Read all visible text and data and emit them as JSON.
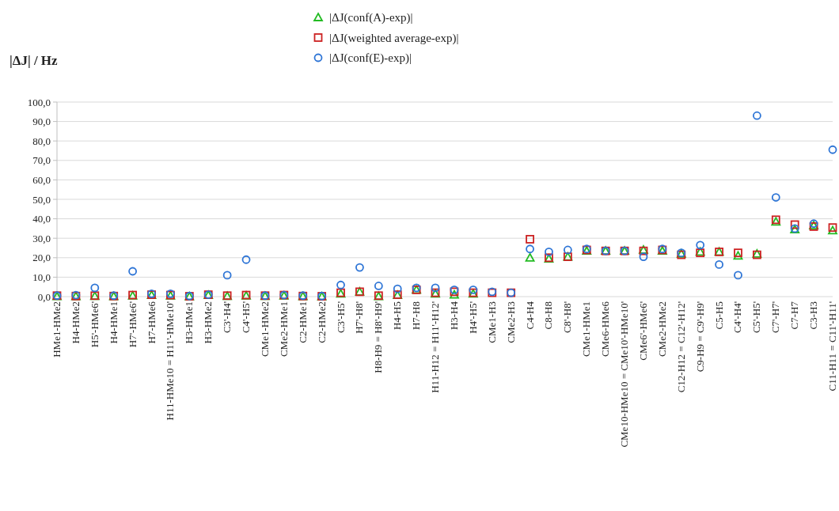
{
  "chart_data": {
    "type": "scatter",
    "ylabel": "|ΔJ| / Hz",
    "categories": [
      "HMe1-HMe2",
      "H4-HMe2",
      "H5'-HMe6'",
      "H4-HMe1",
      "H7'-HMe6'",
      "H7-HMe6",
      "H11-HMe10 = H11'-HMe10'",
      "H3-HMe1",
      "H3-HMe2",
      "C3'-H4'",
      "C4'-H5'",
      "CMe1-HMe2",
      "CMe2-HMe1",
      "C2-HMe1",
      "C2-HMe2",
      "C3'-H5'",
      "H7'-H8'",
      "H8-H9 = H8'-H9'",
      "H4-H5",
      "H7-H8",
      "H11-H12 = H11'-H12'",
      "H3-H4",
      "H4'-H5'",
      "CMe1-H3",
      "CMe2-H3",
      "C4-H4",
      "C8-H8",
      "C8'-H8'",
      "CMe1-HMe1",
      "CMe6-HMe6",
      "CMe10-HMe10 = CMe10'-HMe10'",
      "CMe6'-HMe6'",
      "CMe2-HMe2",
      "C12-H12 = C12'-H12'",
      "C9-H9 = C9'-H9'",
      "C5-H5",
      "C4'-H4'",
      "C5'-H5'",
      "C7'-H7'",
      "C7-H7",
      "C3-H3",
      "C11-H11 = C11'-H11'"
    ],
    "series": [
      {
        "name": "|ΔJ(conf(A)-exp)|",
        "color": "#22bb22",
        "marker": "triangle",
        "values": [
          0.2,
          0.2,
          0.3,
          0.2,
          0.5,
          0.8,
          0.5,
          0.1,
          0.8,
          0.3,
          0.5,
          0.3,
          0.5,
          0.2,
          0.1,
          1.5,
          2.5,
          0.2,
          0.8,
          3.5,
          1.5,
          1,
          1.5,
          null,
          null,
          20,
          19.5,
          20.5,
          23.5,
          23.5,
          23.5,
          24,
          23.5,
          22,
          23,
          23,
          21,
          22,
          38.5,
          34.5,
          36.5,
          34
        ]
      },
      {
        "name": "|ΔJ(weighted average-exp)|",
        "color": "#cc2222",
        "marker": "square",
        "values": [
          0.5,
          0.3,
          0.5,
          0.3,
          0.8,
          1,
          0.8,
          0.2,
          1,
          0.5,
          0.8,
          0.5,
          0.8,
          0.3,
          0.2,
          2,
          2.5,
          0.5,
          1,
          3.5,
          2,
          2.5,
          2,
          2,
          2,
          29.5,
          20,
          20.5,
          24,
          23.5,
          23.5,
          23.5,
          24,
          21.5,
          22.5,
          23,
          22.5,
          21.5,
          39.5,
          37,
          36,
          35.5
        ]
      },
      {
        "name": "|ΔJ(conf(E)-exp)|",
        "color": "#2e75d6",
        "marker": "circle",
        "values": [
          0.5,
          0.8,
          4.5,
          0.5,
          13,
          1.5,
          1.5,
          0.3,
          1,
          11,
          19,
          0.5,
          0.8,
          0.5,
          0.3,
          6,
          15,
          5.5,
          4,
          4.5,
          4.5,
          3.5,
          3.5,
          2.5,
          2,
          24.5,
          23,
          24,
          24.5,
          23.5,
          23.5,
          20.5,
          24.5,
          22.5,
          26.5,
          16.5,
          11,
          93,
          51,
          35,
          37.5,
          75.5
        ]
      }
    ],
    "ylim": [
      0,
      100
    ],
    "yticks": [
      {
        "value": 0,
        "label": "0,0"
      },
      {
        "value": 10,
        "label": "10,0"
      },
      {
        "value": 20,
        "label": "20,0"
      },
      {
        "value": 30,
        "label": "30,0"
      },
      {
        "value": 40,
        "label": "40,0"
      },
      {
        "value": 50,
        "label": "50,0"
      },
      {
        "value": 60,
        "label": "60,0"
      },
      {
        "value": 70,
        "label": "70,0"
      },
      {
        "value": 80,
        "label": "80,0"
      },
      {
        "value": 90,
        "label": "90,0"
      },
      {
        "value": 100,
        "label": "100,0"
      }
    ],
    "grid": "y",
    "legend": "top"
  }
}
